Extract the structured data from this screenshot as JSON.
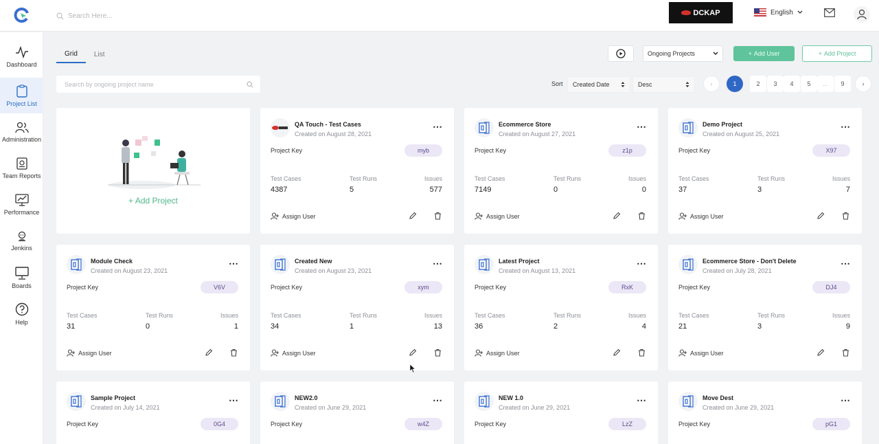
{
  "header": {
    "search_placeholder": "Search Here...",
    "brand": "DCKAP",
    "language": "English"
  },
  "sidebar": {
    "items": [
      {
        "label": "Dashboard",
        "icon": "pulse-icon"
      },
      {
        "label": "Project List",
        "icon": "clipboard-icon",
        "active": true
      },
      {
        "label": "Administration",
        "icon": "users-icon"
      },
      {
        "label": "Team Reports",
        "icon": "report-icon"
      },
      {
        "label": "Performance",
        "icon": "performance-icon"
      },
      {
        "label": "Jenkins",
        "icon": "jenkins-icon"
      },
      {
        "label": "Boards",
        "icon": "board-icon"
      },
      {
        "label": "Help",
        "icon": "help-icon"
      }
    ]
  },
  "toolbar": {
    "tabs": [
      "Grid",
      "List"
    ],
    "filter": "Ongoing Projects",
    "add_user": "Add User",
    "add_project": "Add Project",
    "search_placeholder": "Search by ongoing project name",
    "sort_label": "Sort",
    "sort_field": "Created Date",
    "sort_order": "Desc",
    "pages": [
      "1",
      "2",
      "3",
      "4",
      "5",
      "...",
      "9"
    ],
    "active_page": "1"
  },
  "add_card_label": "Add Project",
  "labels": {
    "project_key": "Project Key",
    "test_cases": "Test Cases",
    "test_runs": "Test Runs",
    "issues": "Issues",
    "assign_user": "Assign User"
  },
  "projects": [
    {
      "name": "QA Touch - Test Cases",
      "created": "Created on August 28, 2021",
      "key": "myb",
      "test_cases": "4387",
      "test_runs": "5",
      "issues": "577",
      "logo": "dckap"
    },
    {
      "name": "Ecommerce Store",
      "created": "Created on August 27, 2021",
      "key": "z1p",
      "test_cases": "7149",
      "test_runs": "0",
      "issues": "0"
    },
    {
      "name": "Demo Project",
      "created": "Created on August 25, 2021",
      "key": "X97",
      "test_cases": "37",
      "test_runs": "3",
      "issues": "7"
    },
    {
      "name": "Module Check",
      "created": "Created on August 23, 2021",
      "key": "V6V",
      "test_cases": "31",
      "test_runs": "0",
      "issues": "1"
    },
    {
      "name": "Created New",
      "created": "Created on August 23, 2021",
      "key": "xym",
      "test_cases": "34",
      "test_runs": "1",
      "issues": "13"
    },
    {
      "name": "Latest Project",
      "created": "Created on August 13, 2021",
      "key": "RxK",
      "test_cases": "36",
      "test_runs": "2",
      "issues": "4"
    },
    {
      "name": "Ecommerce Store - Don't Delete",
      "created": "Created on July 28, 2021",
      "key": "DJ4",
      "test_cases": "21",
      "test_runs": "3",
      "issues": "9"
    },
    {
      "name": "Sample Project",
      "created": "Created on July 14, 2021",
      "key": "0G4"
    },
    {
      "name": "NEW2.0",
      "created": "Created on June 29, 2021",
      "key": "w4Z"
    },
    {
      "name": "NEW 1.0",
      "created": "Created on June 29, 2021",
      "key": "LzZ"
    },
    {
      "name": "Move Dest",
      "created": "Created on June 29, 2021",
      "key": "pG1"
    }
  ]
}
